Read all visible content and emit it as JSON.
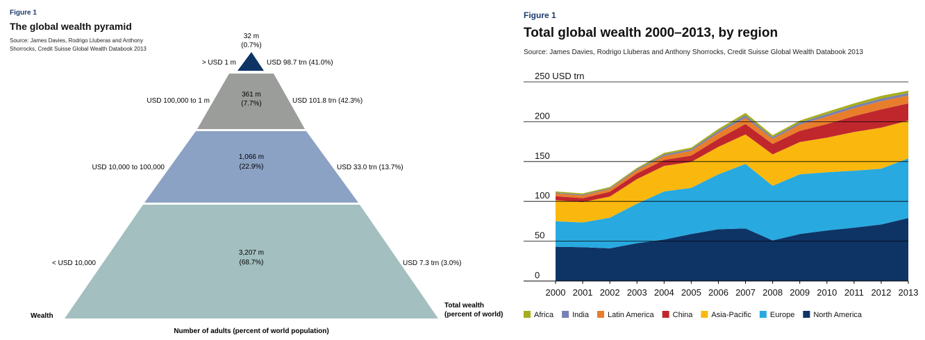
{
  "pyramid": {
    "figure_label": "Figure 1",
    "title": "The global wealth pyramid",
    "source": "Source: James Davies, Rodrigo Lluberas and Anthony Shorrocks, Credit Suisse Global Wealth Databook 2013",
    "x_axis_label": "Number of adults (percent of world population)",
    "left_axis_label": "Wealth",
    "right_axis_label": "Total wealth (percent of world)",
    "tiers": [
      {
        "wealth_band": "> USD 1 m",
        "adults": "32 m",
        "adults_pct": "(0.7%)",
        "total_wealth": "USD 98.7 trn (41.0%)",
        "color": "#0e3466"
      },
      {
        "wealth_band": "USD 100,000 to 1 m",
        "adults": "361 m",
        "adults_pct": "(7.7%)",
        "total_wealth": "USD 101.8 trn (42.3%)",
        "color": "#9b9d9b"
      },
      {
        "wealth_band": "USD 10,000 to 100,000",
        "adults": "1,066 m",
        "adults_pct": "(22.9%)",
        "total_wealth": "USD 33.0 trn (13.7%)",
        "color": "#8ca2c4"
      },
      {
        "wealth_band": "< USD 10,000",
        "adults": "3,207 m",
        "adults_pct": "(68.7%)",
        "total_wealth": "USD 7.3 trn (3.0%)",
        "color": "#a3bfbf"
      }
    ]
  },
  "area": {
    "figure_label": "Figure 1",
    "title": "Total global wealth 2000–2013, by region",
    "source": "Source: James Davies, Rodrigo Lluberas and Anthony Shorrocks, Credit Suisse Global Wealth Databook 2013",
    "y_unit": "USD trn"
  },
  "chart_data": [
    {
      "type": "pyramid",
      "title": "The global wealth pyramid",
      "xlabel": "Number of adults (percent of world population)",
      "categories": [
        "> USD 1 m",
        "USD 100,000 to 1 m",
        "USD 10,000 to 100,000",
        "< USD 10,000"
      ],
      "series": [
        {
          "name": "Number of adults (m)",
          "values": [
            32,
            361,
            1066,
            3207
          ]
        },
        {
          "name": "Percent of world population",
          "values": [
            0.7,
            7.7,
            22.9,
            68.7
          ]
        },
        {
          "name": "Total wealth (USD trn)",
          "values": [
            98.7,
            101.8,
            33.0,
            7.3
          ]
        },
        {
          "name": "Total wealth (percent of world)",
          "values": [
            41.0,
            42.3,
            13.7,
            3.0
          ]
        }
      ]
    },
    {
      "type": "area",
      "stacked": true,
      "title": "Total global wealth 2000–2013, by region",
      "ylabel": "USD trn",
      "ylim": [
        0,
        250
      ],
      "yticks": [
        0,
        50,
        100,
        150,
        200,
        250
      ],
      "x": [
        "2000",
        "2001",
        "2002",
        "2003",
        "2004",
        "2005",
        "2006",
        "2007",
        "2008",
        "2009",
        "2010",
        "2011",
        "2012",
        "2013"
      ],
      "grid": true,
      "legend_position": "bottom",
      "series": [
        {
          "name": "North America",
          "color": "#0e3466",
          "values": [
            43,
            42.5,
            41,
            47.5,
            52,
            59,
            65,
            66,
            51,
            59,
            63.5,
            67,
            71,
            79
          ]
        },
        {
          "name": "Europe",
          "color": "#28a9df",
          "values": [
            32,
            31,
            38.5,
            49.5,
            60.5,
            58,
            69,
            81,
            68.5,
            75,
            73,
            71.5,
            70,
            75
          ]
        },
        {
          "name": "Asia-Pacific",
          "color": "#fab80f",
          "values": [
            26.5,
            25.5,
            26.5,
            31,
            32,
            32.5,
            34.5,
            37,
            39.5,
            40.5,
            43.5,
            48.5,
            51.5,
            47.5
          ]
        },
        {
          "name": "China",
          "color": "#c0272d",
          "values": [
            5,
            5,
            6,
            7,
            7.5,
            8,
            10,
            13,
            13,
            14,
            17,
            20,
            23,
            21.5
          ]
        },
        {
          "name": "Latin America",
          "color": "#e87d2c",
          "values": [
            3.5,
            3.5,
            3.5,
            4,
            5,
            6,
            7.5,
            8,
            6.5,
            8,
            9.5,
            10,
            10.5,
            10
          ]
        },
        {
          "name": "India",
          "color": "#7681b3",
          "values": [
            1,
            1,
            1,
            1.5,
            2,
            2,
            2.5,
            3,
            2,
            2.5,
            3,
            3,
            3,
            3
          ]
        },
        {
          "name": "Africa",
          "color": "#a6ad1d",
          "values": [
            1.5,
            1.5,
            1.5,
            1.5,
            2,
            2,
            2.5,
            3,
            2.5,
            2.5,
            3,
            3,
            3.5,
            3
          ]
        }
      ]
    }
  ]
}
